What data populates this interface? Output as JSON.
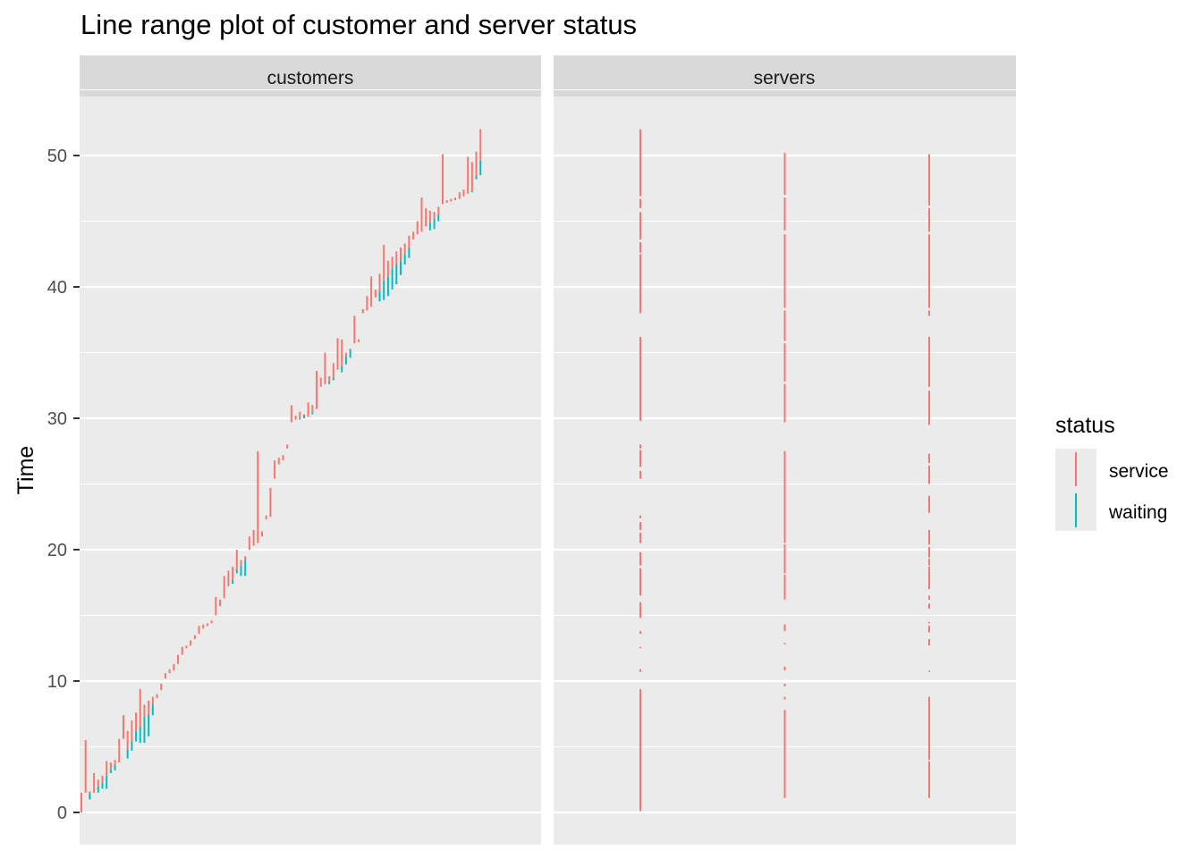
{
  "chart_data": {
    "type": "linerange",
    "title": "Line range plot of customer and server status",
    "ylabel": "Time",
    "ylim": [
      0,
      55
    ],
    "yticks": [
      0,
      10,
      20,
      30,
      40,
      50
    ],
    "panels": [
      "customers",
      "servers"
    ],
    "legend": {
      "title": "status",
      "position": "right",
      "entries": [
        {
          "name": "service",
          "color": "#F8766D"
        },
        {
          "name": "waiting",
          "color": "#00BFC4"
        }
      ]
    },
    "grid": true,
    "customers": {
      "x_count": 110,
      "service": [
        [
          1,
          0,
          1.5
        ],
        [
          2,
          1.5,
          5.5
        ],
        [
          3,
          1.0,
          1.6
        ],
        [
          4,
          1.5,
          3.0
        ],
        [
          5,
          2.0,
          2.5
        ],
        [
          6,
          2.3,
          2.8
        ],
        [
          7,
          2.8,
          3.9
        ],
        [
          8,
          3.3,
          3.8
        ],
        [
          9,
          3.6,
          4.0
        ],
        [
          10,
          3.8,
          5.6
        ],
        [
          11,
          5.6,
          7.4
        ],
        [
          12,
          4.8,
          6.2
        ],
        [
          13,
          5.4,
          7.0
        ],
        [
          14,
          6.2,
          7.6
        ],
        [
          15,
          6.5,
          9.4
        ],
        [
          16,
          7.3,
          8.2
        ],
        [
          17,
          7.5,
          8.5
        ],
        [
          18,
          8.2,
          8.8
        ],
        [
          19,
          8.7,
          9.0
        ],
        [
          20,
          9.3,
          9.8
        ],
        [
          21,
          10.2,
          10.6
        ],
        [
          22,
          10.6,
          10.9
        ],
        [
          23,
          10.8,
          11.3
        ],
        [
          24,
          11.3,
          12.0
        ],
        [
          25,
          12.0,
          12.6
        ],
        [
          26,
          12.5,
          12.7
        ],
        [
          27,
          12.7,
          13.1
        ],
        [
          28,
          13.2,
          13.5
        ],
        [
          29,
          13.6,
          14.2
        ],
        [
          30,
          14.0,
          14.3
        ],
        [
          31,
          14.2,
          14.4
        ],
        [
          32,
          14.4,
          14.6
        ],
        [
          33,
          15.0,
          16.4
        ],
        [
          34,
          15.7,
          16.2
        ],
        [
          35,
          16.3,
          18.0
        ],
        [
          36,
          17.2,
          18.4
        ],
        [
          37,
          17.7,
          18.7
        ],
        [
          38,
          18.5,
          20.0
        ],
        [
          39,
          18.8,
          19.2
        ],
        [
          40,
          19.2,
          19.5
        ],
        [
          41,
          20.0,
          21.0
        ],
        [
          42,
          20.3,
          21.5
        ],
        [
          43,
          20.5,
          27.5
        ],
        [
          44,
          21.0,
          21.4
        ],
        [
          45,
          22.3,
          22.6
        ],
        [
          46,
          22.5,
          24.7
        ],
        [
          47,
          25.4,
          26.8
        ],
        [
          48,
          26.5,
          27.0
        ],
        [
          49,
          26.8,
          27.2
        ],
        [
          50,
          27.7,
          28.0
        ],
        [
          51,
          29.7,
          31.0
        ],
        [
          52,
          29.9,
          30.2
        ],
        [
          53,
          30.0,
          30.5
        ],
        [
          54,
          30.2,
          30.3
        ],
        [
          55,
          30.1,
          31.2
        ],
        [
          56,
          30.4,
          31.0
        ],
        [
          57,
          30.7,
          33.6
        ],
        [
          58,
          32.4,
          33.1
        ],
        [
          59,
          32.6,
          35.0
        ],
        [
          60,
          32.8,
          33.2
        ],
        [
          61,
          33.1,
          34.2
        ],
        [
          62,
          33.7,
          36.1
        ],
        [
          63,
          34.0,
          36.0
        ],
        [
          64,
          34.7,
          35.0
        ],
        [
          65,
          35.2,
          35.3
        ],
        [
          66,
          35.7,
          37.8
        ],
        [
          67,
          35.8,
          36.0
        ],
        [
          68,
          38.0,
          38.3
        ],
        [
          69,
          38.2,
          39.3
        ],
        [
          70,
          38.5,
          40.8
        ],
        [
          71,
          39.2,
          39.8
        ],
        [
          72,
          39.7,
          41.0
        ],
        [
          73,
          40.5,
          43.2
        ],
        [
          74,
          40.8,
          42.0
        ],
        [
          75,
          41.4,
          42.3
        ],
        [
          76,
          41.7,
          42.7
        ],
        [
          77,
          42.0,
          43.0
        ],
        [
          78,
          42.5,
          43.3
        ],
        [
          79,
          43.0,
          43.9
        ],
        [
          80,
          43.6,
          44.2
        ],
        [
          81,
          44.0,
          45.0
        ],
        [
          82,
          44.2,
          46.8
        ],
        [
          83,
          44.6,
          46.0
        ],
        [
          84,
          44.9,
          45.8
        ],
        [
          85,
          45.2,
          45.7
        ],
        [
          86,
          45.5,
          46.1
        ],
        [
          87,
          46.3,
          50.1
        ],
        [
          88,
          46.4,
          46.6
        ],
        [
          89,
          46.5,
          46.7
        ],
        [
          90,
          46.6,
          46.8
        ],
        [
          91,
          46.7,
          47.2
        ],
        [
          92,
          46.9,
          47.4
        ],
        [
          93,
          47.1,
          49.9
        ],
        [
          94,
          47.3,
          49.5
        ],
        [
          95,
          48.4,
          50.3
        ],
        [
          96,
          49.6,
          52.0
        ]
      ],
      "waiting": [
        [
          3,
          1.0,
          1.5
        ],
        [
          5,
          1.5,
          2.0
        ],
        [
          6,
          1.8,
          2.3
        ],
        [
          7,
          1.8,
          2.8
        ],
        [
          8,
          3.0,
          3.3
        ],
        [
          9,
          3.2,
          3.6
        ],
        [
          12,
          4.1,
          4.8
        ],
        [
          13,
          4.7,
          5.4
        ],
        [
          14,
          5.4,
          6.2
        ],
        [
          15,
          5.3,
          6.5
        ],
        [
          16,
          5.3,
          7.3
        ],
        [
          17,
          5.8,
          7.5
        ],
        [
          18,
          7.4,
          8.2
        ],
        [
          37,
          17.4,
          17.7
        ],
        [
          38,
          18.2,
          18.5
        ],
        [
          39,
          18.0,
          18.8
        ],
        [
          40,
          18.0,
          19.2
        ],
        [
          53,
          29.9,
          30.0
        ],
        [
          54,
          30.0,
          30.2
        ],
        [
          56,
          30.3,
          30.4
        ],
        [
          60,
          32.6,
          32.8
        ],
        [
          61,
          32.9,
          33.1
        ],
        [
          63,
          33.5,
          34.0
        ],
        [
          64,
          34.1,
          34.7
        ],
        [
          65,
          34.6,
          35.2
        ],
        [
          72,
          38.9,
          39.7
        ],
        [
          73,
          39.0,
          40.5
        ],
        [
          74,
          39.3,
          40.8
        ],
        [
          75,
          39.8,
          41.4
        ],
        [
          76,
          40.2,
          41.7
        ],
        [
          77,
          40.9,
          42.0
        ],
        [
          78,
          41.7,
          42.5
        ],
        [
          79,
          42.2,
          43.0
        ],
        [
          84,
          44.3,
          44.9
        ],
        [
          85,
          44.4,
          45.2
        ],
        [
          86,
          45.0,
          45.5
        ],
        [
          94,
          47.2,
          47.3
        ],
        [
          95,
          48.2,
          48.4
        ],
        [
          96,
          48.5,
          49.6
        ]
      ]
    },
    "servers": {
      "x_count": 3,
      "service": [
        [
          1,
          0.1,
          9.4
        ],
        [
          1,
          10.7,
          10.9
        ],
        [
          1,
          12.5,
          12.6
        ],
        [
          1,
          13.6,
          13.8
        ],
        [
          1,
          14.8,
          16.0
        ],
        [
          1,
          16.5,
          18.6
        ],
        [
          1,
          18.8,
          19.8
        ],
        [
          1,
          20.5,
          21.3
        ],
        [
          1,
          21.5,
          22.1
        ],
        [
          1,
          22.4,
          22.6
        ],
        [
          1,
          25.4,
          26.0
        ],
        [
          1,
          26.3,
          27.6
        ],
        [
          1,
          27.7,
          28.0
        ],
        [
          1,
          29.8,
          36.2
        ],
        [
          1,
          38.0,
          42.5
        ],
        [
          1,
          42.6,
          43.4
        ],
        [
          1,
          43.6,
          45.7
        ],
        [
          1,
          46.0,
          46.7
        ],
        [
          1,
          46.9,
          52.0
        ],
        [
          2,
          1.1,
          7.8
        ],
        [
          2,
          8.6,
          8.8
        ],
        [
          2,
          9.6,
          9.8
        ],
        [
          2,
          10.8,
          11.1
        ],
        [
          2,
          12.8,
          12.9
        ],
        [
          2,
          13.8,
          14.3
        ],
        [
          2,
          16.2,
          18.1
        ],
        [
          2,
          18.2,
          20.4
        ],
        [
          2,
          20.5,
          27.5
        ],
        [
          2,
          29.7,
          32.6
        ],
        [
          2,
          32.8,
          35.7
        ],
        [
          2,
          35.9,
          38.2
        ],
        [
          2,
          38.4,
          44.0
        ],
        [
          2,
          44.3,
          46.8
        ],
        [
          2,
          47.0,
          50.2
        ],
        [
          3,
          1.1,
          3.9
        ],
        [
          3,
          4.0,
          8.8
        ],
        [
          3,
          10.7,
          10.8
        ],
        [
          3,
          12.7,
          13.2
        ],
        [
          3,
          13.7,
          14.2
        ],
        [
          3,
          14.4,
          14.5
        ],
        [
          3,
          15.5,
          15.9
        ],
        [
          3,
          16.2,
          16.5
        ],
        [
          3,
          17.0,
          18.7
        ],
        [
          3,
          18.8,
          19.3
        ],
        [
          3,
          19.4,
          20.2
        ],
        [
          3,
          20.4,
          21.5
        ],
        [
          3,
          22.8,
          24.1
        ],
        [
          3,
          25.0,
          26.4
        ],
        [
          3,
          26.6,
          27.3
        ],
        [
          3,
          29.5,
          32.1
        ],
        [
          3,
          32.4,
          36.2
        ],
        [
          3,
          37.8,
          38.2
        ],
        [
          3,
          38.4,
          44.0
        ],
        [
          3,
          44.2,
          46.0
        ],
        [
          3,
          46.2,
          50.1
        ]
      ]
    }
  }
}
